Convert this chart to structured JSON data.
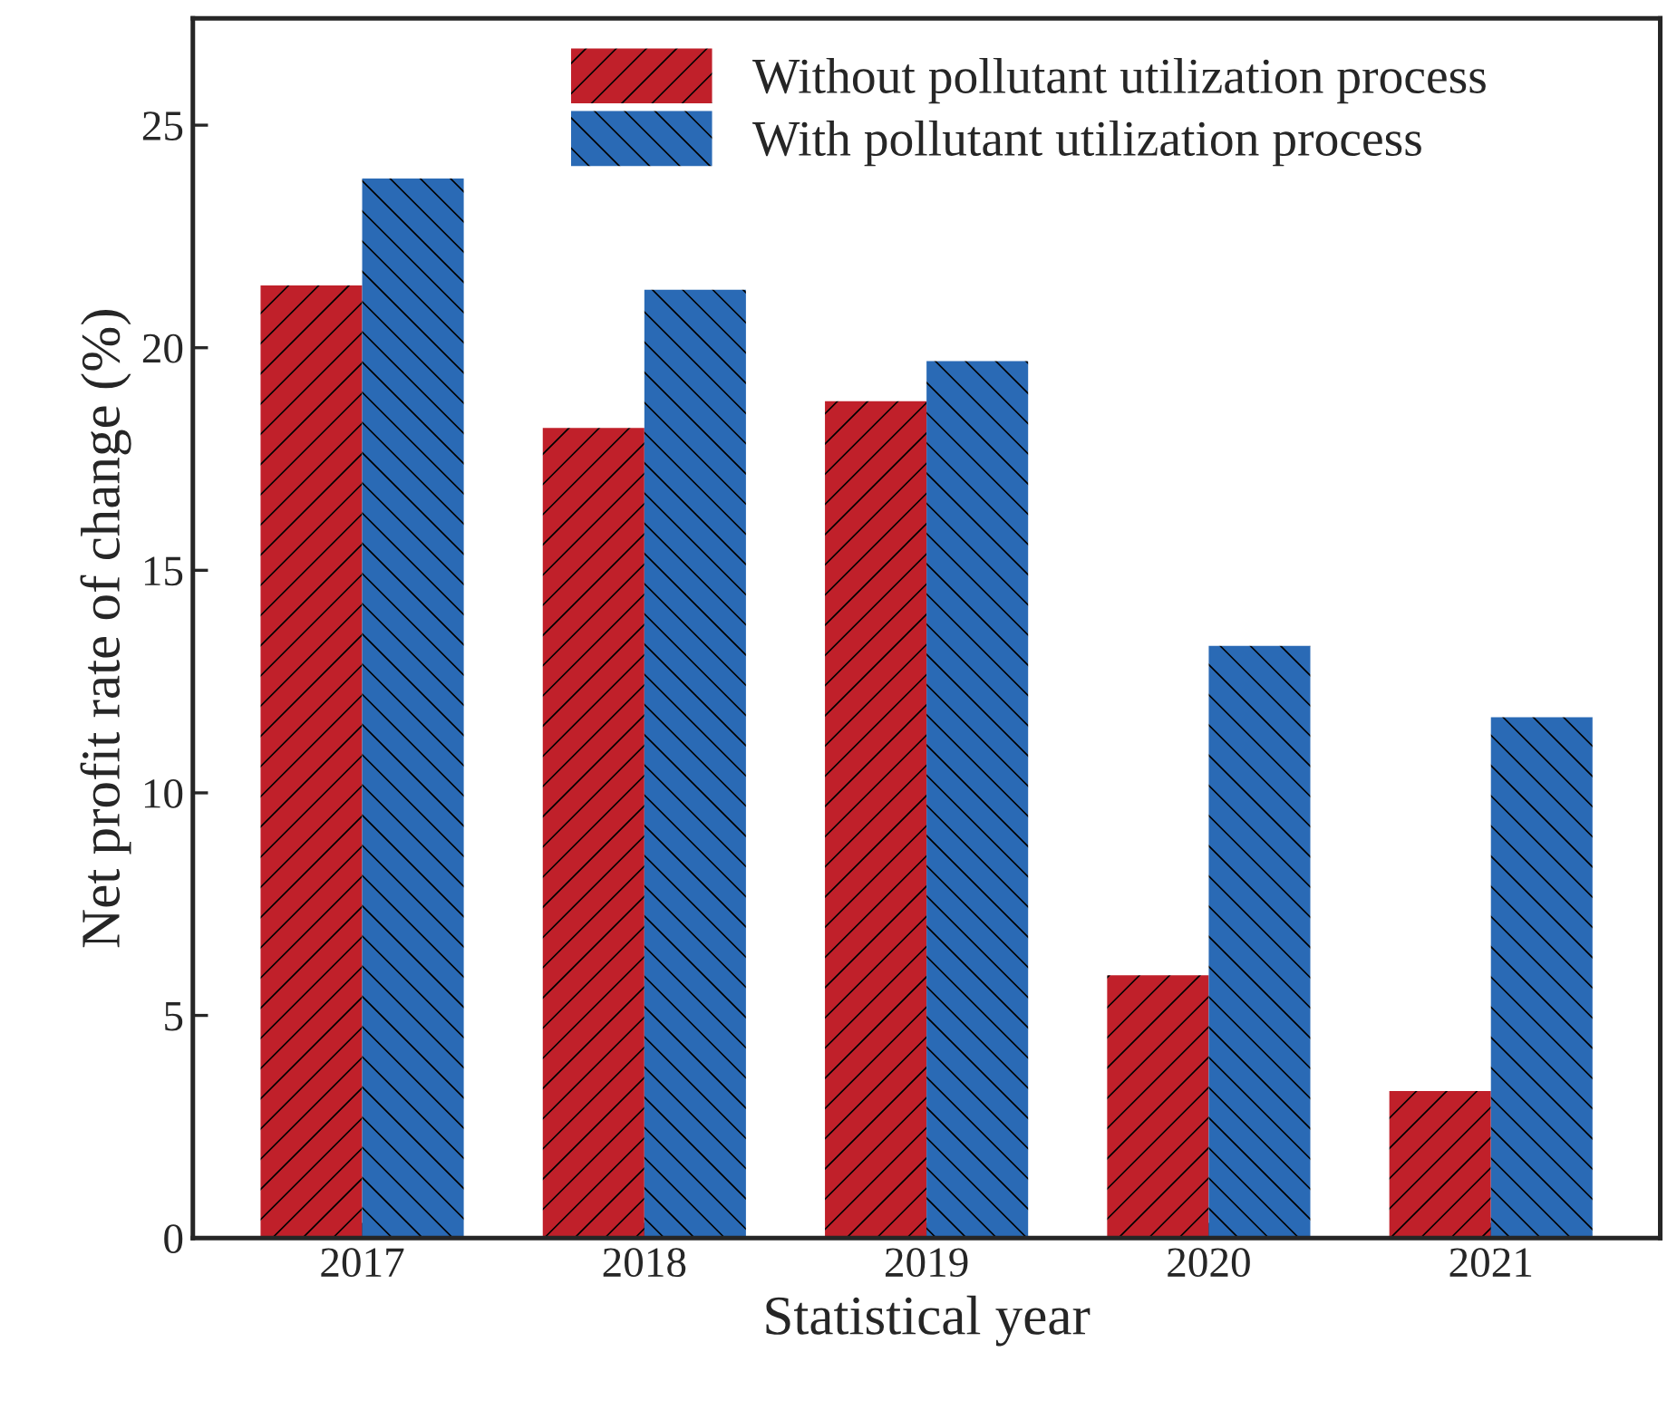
{
  "chart_data": {
    "type": "bar",
    "xlabel": "Statistical year",
    "ylabel": "Net profit rate of change (%)",
    "categories": [
      "2017",
      "2018",
      "2019",
      "2020",
      "2021"
    ],
    "series": [
      {
        "name": "Without pollutant utilization process",
        "color": "#c0202a",
        "values": [
          21.4,
          18.2,
          18.8,
          5.9,
          3.3
        ]
      },
      {
        "name": "With pollutant utilization process",
        "color": "#2a6ab5",
        "values": [
          23.8,
          21.3,
          19.7,
          13.3,
          11.7
        ]
      }
    ],
    "ylim": [
      0,
      27.4
    ],
    "yticks": [
      0,
      5,
      10,
      15,
      20,
      25
    ],
    "grid": false,
    "legend": "top"
  }
}
